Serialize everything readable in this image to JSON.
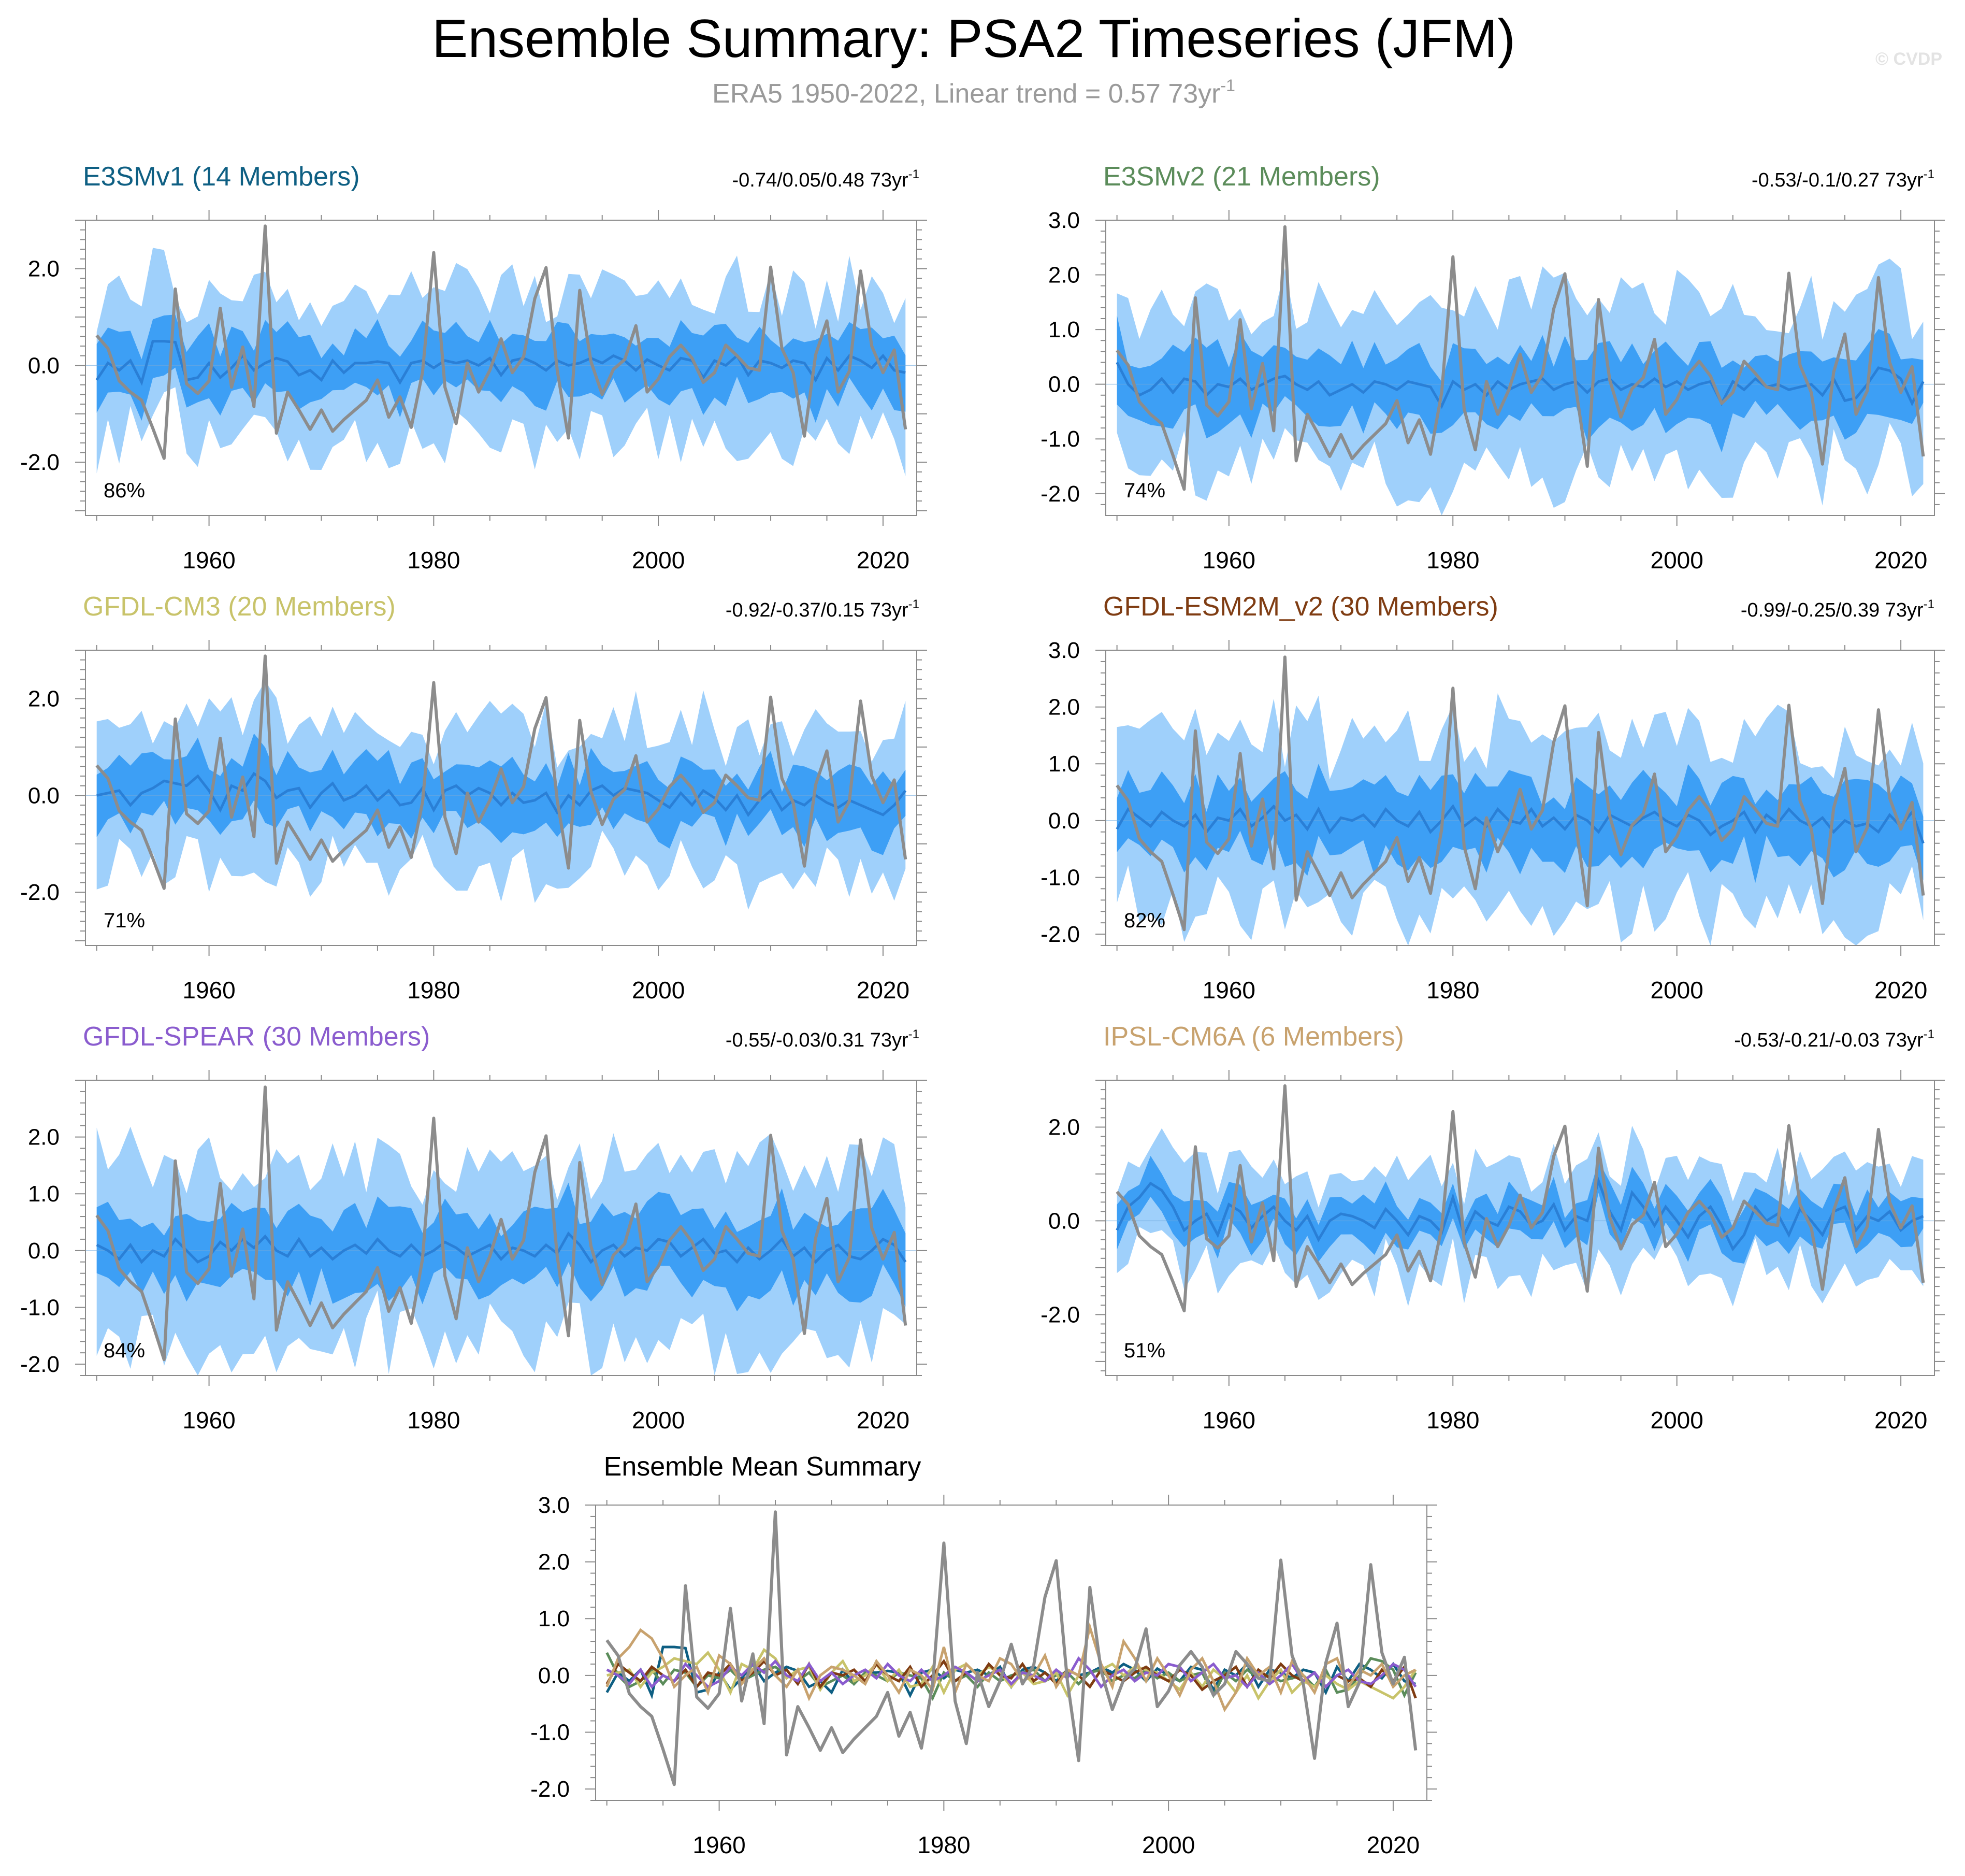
{
  "title": "Ensemble Summary: PSA2 Timeseries (JFM)",
  "subtitle": "ERA5 1950-2022, Linear trend = 0.57 73yr",
  "subtitle_sup": "-1",
  "watermark": "© CVDP",
  "summary_title": "Ensemble Mean Summary",
  "colors": {
    "outer_band": "#9fd0fb",
    "inner_band": "#3d9ff5",
    "ensemble_mean": "#2a7fd6",
    "observed": "#8c8c8c",
    "axis": "#7f7f7f"
  },
  "x_ticks": [
    "1960",
    "1980",
    "2000",
    "2020"
  ],
  "chart_data": {
    "type": "area",
    "x_start": 1950,
    "x_end": 2022,
    "xlim": [
      1949,
      2023
    ],
    "observed": [
      0.62,
      0.35,
      -0.32,
      -0.55,
      -0.72,
      -1.3,
      -1.92,
      1.58,
      -0.38,
      -0.58,
      -0.32,
      1.18,
      -0.45,
      0.38,
      -0.85,
      2.88,
      -1.4,
      -0.55,
      -0.92,
      -1.32,
      -0.92,
      -1.36,
      -1.12,
      -0.92,
      -0.72,
      -0.3,
      -1.07,
      -0.65,
      -1.28,
      -0.15,
      2.33,
      -0.45,
      -1.2,
      0.05,
      -0.55,
      -0.1,
      0.55,
      -0.15,
      0.18,
      1.38,
      2.02,
      -0.1,
      -1.5,
      1.55,
      0.08,
      -0.6,
      -0.08,
      0.12,
      0.82,
      -0.55,
      -0.28,
      0.18,
      0.42,
      0.15,
      -0.35,
      -0.15,
      0.42,
      0.2,
      -0.05,
      -0.1,
      2.03,
      0.35,
      -0.15,
      -1.46,
      0.22,
      0.92,
      -0.55,
      -0.12,
      1.95,
      0.4,
      -0.15,
      0.32,
      -1.32
    ],
    "panels": [
      {
        "name": "E3SMv1 (14 Members)",
        "color": "#0e5f83",
        "trend": "-0.74/0.05/0.48 73yr",
        "trend_sup": "-1",
        "percent": "86%",
        "ylim": [
          -3.1,
          3.0
        ],
        "ticks": [
          "2.0",
          "0.0",
          "-2.0"
        ],
        "tick_values": [
          2,
          0,
          -2
        ],
        "mean": [
          -0.3,
          0.05,
          -0.1,
          0.1,
          -0.35,
          0.5,
          0.5,
          0.48,
          -0.3,
          -0.25,
          0.05,
          -0.25,
          -0.05,
          0.2,
          -0.1,
          0.05,
          0.15,
          0.08,
          -0.2,
          -0.1,
          -0.3,
          0.1,
          -0.15,
          0.05,
          0.05,
          0.08,
          0.05,
          -0.35,
          0.05,
          0.1,
          -0.05,
          0.1,
          0.05,
          0.1,
          0.0,
          0.15,
          -0.2,
          0.1,
          0.15,
          0.05,
          -0.1,
          0.1,
          0.0,
          0.05,
          0.15,
          0.05,
          0.2,
          0.1,
          -0.1,
          0.12,
          0.0,
          -0.1,
          0.15,
          0.1,
          -0.25,
          0.1,
          0.0,
          0.2,
          -0.2,
          0.1,
          0.05,
          -0.05,
          0.1,
          0.05,
          -0.3,
          0.15,
          -0.1,
          0.2,
          0.1,
          -0.05,
          0.2,
          -0.1,
          -0.15
        ]
      },
      {
        "name": "E3SMv2 (21 Members)",
        "color": "#5b8c5a",
        "trend": "-0.53/-0.1/0.27 73yr",
        "trend_sup": "-1",
        "percent": "74%",
        "ylim": [
          -2.4,
          3.0
        ],
        "ticks": [
          "3.0",
          "2.0",
          "1.0",
          "0.0",
          "-1.0",
          "-2.0"
        ],
        "tick_values": [
          3,
          2,
          1,
          0,
          -1,
          -2
        ],
        "mean": [
          0.4,
          0.0,
          -0.2,
          -0.1,
          0.1,
          -0.15,
          0.1,
          0.05,
          -0.2,
          0.0,
          -0.05,
          0.1,
          -0.1,
          0.0,
          0.1,
          0.15,
          0.0,
          -0.1,
          0.05,
          -0.2,
          -0.1,
          0.0,
          -0.15,
          0.05,
          0.0,
          -0.1,
          0.05,
          0.0,
          -0.05,
          -0.4,
          0.05,
          -0.1,
          0.0,
          -0.2,
          0.05,
          -0.1,
          0.0,
          0.05,
          0.1,
          -0.1,
          0.0,
          0.05,
          -0.15,
          0.05,
          0.1,
          -0.1,
          0.0,
          -0.05,
          0.1,
          -0.05,
          0.05,
          -0.1,
          0.0,
          0.05,
          -0.35,
          0.05,
          -0.1,
          0.1,
          -0.05,
          0.0,
          -0.1,
          -0.05,
          0.0,
          -0.2,
          0.1,
          -0.3,
          -0.25,
          0.0,
          0.3,
          0.25,
          0.1,
          -0.35,
          0.05
        ]
      },
      {
        "name": "GFDL-CM3 (20 Members)",
        "color": "#c8c36a",
        "trend": "-0.92/-0.37/0.15 73yr",
        "trend_sup": "-1",
        "percent": "71%",
        "ylim": [
          -3.1,
          3.0
        ],
        "ticks": [
          "2.0",
          "0.0",
          "-2.0"
        ],
        "tick_values": [
          2,
          0,
          -2
        ],
        "mean": [
          0.0,
          0.05,
          0.1,
          -0.2,
          0.05,
          0.15,
          0.3,
          0.25,
          0.2,
          0.4,
          0.1,
          -0.3,
          0.2,
          0.1,
          0.45,
          0.3,
          -0.05,
          0.1,
          0.15,
          -0.25,
          0.05,
          0.25,
          -0.1,
          0.0,
          0.2,
          -0.1,
          0.1,
          -0.2,
          -0.15,
          0.15,
          -0.3,
          0.1,
          0.2,
          0.0,
          0.15,
          0.05,
          -0.2,
          0.05,
          -0.15,
          -0.1,
          0.05,
          -0.35,
          0.0,
          -0.2,
          0.1,
          0.2,
          0.0,
          0.15,
          0.1,
          0.05,
          -0.1,
          -0.25,
          0.05,
          -0.2,
          0.1,
          -0.05,
          -0.3,
          0.0,
          -0.4,
          -0.1,
          0.1,
          -0.3,
          -0.1,
          -0.2,
          0.0,
          -0.15,
          -0.25,
          -0.1,
          -0.2,
          -0.3,
          -0.4,
          -0.2,
          0.1
        ]
      },
      {
        "name": "GFDL-ESM2M_v2 (30 Members)",
        "color": "#7f3c12",
        "trend": "-0.99/-0.25/0.39 73yr",
        "trend_sup": "-1",
        "percent": "82%",
        "ylim": [
          -2.2,
          3.0
        ],
        "ticks": [
          "3.0",
          "2.0",
          "1.0",
          "0.0",
          "-1.0",
          "-2.0"
        ],
        "tick_values": [
          3,
          2,
          1,
          0,
          -1,
          -2
        ],
        "mean": [
          -0.15,
          0.2,
          0.05,
          -0.1,
          0.15,
          0.0,
          -0.1,
          0.1,
          -0.2,
          0.05,
          0.0,
          0.2,
          -0.1,
          0.05,
          0.25,
          0.0,
          0.1,
          -0.15,
          0.2,
          -0.2,
          0.05,
          0.0,
          0.1,
          -0.1,
          0.2,
          0.0,
          -0.1,
          0.15,
          -0.2,
          0.0,
          0.25,
          -0.1,
          0.05,
          -0.1,
          0.2,
          0.0,
          -0.05,
          0.2,
          -0.1,
          0.05,
          -0.15,
          0.1,
          0.0,
          -0.2,
          0.1,
          0.0,
          -0.1,
          0.05,
          0.15,
          0.0,
          -0.1,
          0.1,
          0.0,
          -0.25,
          -0.1,
          0.0,
          0.15,
          -0.2,
          0.1,
          -0.05,
          0.2,
          0.0,
          -0.1,
          0.05,
          -0.2,
          0.0,
          -0.1,
          -0.05,
          -0.2,
          0.1,
          -0.1,
          0.15,
          -0.4
        ]
      },
      {
        "name": "GFDL-SPEAR (30 Members)",
        "color": "#8a5cce",
        "trend": "-0.55/-0.03/0.31 73yr",
        "trend_sup": "-1",
        "percent": "84%",
        "ylim": [
          -2.2,
          3.0
        ],
        "ticks": [
          "2.0",
          "1.0",
          "0.0",
          "-1.0",
          "-2.0"
        ],
        "tick_values": [
          2,
          1,
          0,
          -1,
          -2
        ],
        "mean": [
          0.1,
          0.0,
          -0.15,
          0.1,
          -0.2,
          0.0,
          -0.1,
          0.2,
          0.0,
          -0.2,
          -0.1,
          0.15,
          0.0,
          0.2,
          0.05,
          0.25,
          0.0,
          -0.1,
          0.2,
          -0.1,
          0.05,
          -0.15,
          0.0,
          0.1,
          -0.05,
          0.2,
          0.0,
          -0.1,
          0.1,
          -0.1,
          0.0,
          0.15,
          0.05,
          -0.1,
          0.0,
          0.1,
          -0.15,
          0.05,
          0.0,
          -0.1,
          0.1,
          -0.05,
          0.3,
          0.1,
          -0.2,
          0.0,
          0.1,
          -0.1,
          0.05,
          0.0,
          0.2,
          0.15,
          -0.1,
          0.05,
          0.2,
          -0.05,
          0.0,
          -0.2,
          0.05,
          -0.15,
          0.0,
          0.2,
          -0.1,
          0.05,
          -0.2,
          0.0,
          0.1,
          -0.1,
          -0.15,
          0.0,
          0.2,
          0.1,
          -0.2
        ]
      },
      {
        "name": "IPSL-CM6A (6 Members)",
        "color": "#c8a26e",
        "trend": "-0.53/-0.21/-0.03 73yr",
        "trend_sup": "-1",
        "percent": "51%",
        "ylim": [
          -3.3,
          3.0
        ],
        "ticks": [
          "2.0",
          "0.0",
          "-2.0"
        ],
        "tick_values": [
          2,
          0,
          -2
        ],
        "mean": [
          -0.2,
          0.3,
          0.5,
          0.8,
          0.65,
          0.3,
          -0.2,
          0.0,
          0.15,
          -0.3,
          0.35,
          0.2,
          -0.15,
          0.1,
          0.3,
          0.0,
          -0.2,
          0.1,
          -0.4,
          0.0,
          0.15,
          0.1,
          0.0,
          -0.15,
          0.25,
          0.0,
          -0.3,
          0.1,
          0.0,
          -0.25,
          0.5,
          -0.3,
          0.2,
          0.0,
          -0.1,
          0.3,
          0.2,
          -0.1,
          0.0,
          0.35,
          -0.2,
          0.1,
          0.0,
          0.85,
          0.2,
          -0.2,
          0.6,
          0.3,
          -0.1,
          0.3,
          0.0,
          -0.35,
          0.1,
          0.3,
          -0.1,
          -0.6,
          -0.3,
          0.3,
          0.0,
          0.15,
          -0.3,
          0.25,
          0.0,
          -0.3,
          0.2,
          0.3,
          -0.2,
          0.1,
          0.0,
          0.2,
          -0.2,
          0.0,
          0.1
        ]
      }
    ],
    "summary": {
      "ylim": [
        -2.2,
        3.0
      ],
      "ticks": [
        "3.0",
        "2.0",
        "1.0",
        "0.0",
        "-1.0",
        "-2.0"
      ],
      "tick_values": [
        3,
        2,
        1,
        0,
        -1,
        -2
      ]
    }
  }
}
